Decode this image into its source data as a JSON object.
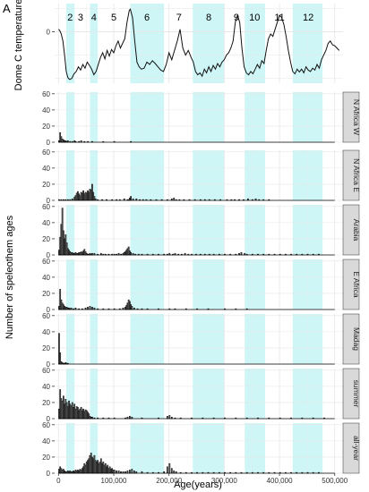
{
  "figure": {
    "panel_letter": "A",
    "xlabel": "Age(years)",
    "ylabel_bottom": "Number of speleothem ages",
    "ylabel_top": "Dome C temperature",
    "x_ticks": [
      "0",
      "100,000",
      "200,000",
      "300,000",
      "400,000",
      "500,000"
    ]
  },
  "colors": {
    "shade": "#cff6f7",
    "grid": "#e6e6e6",
    "strip": "#d9d9d9",
    "line": "#111111",
    "bar_fill": "#666666"
  },
  "chart_data": [
    {
      "type": "line",
      "title": "",
      "ylabel": "Dome C temperature",
      "xlim": [
        -7000,
        515000
      ],
      "ylim": [
        -11,
        6
      ],
      "y_ticks": [
        0
      ],
      "shaded_intervals": [
        [
          14000,
          29000
        ],
        [
          57000,
          71000
        ],
        [
          130000,
          191000
        ],
        [
          243000,
          300000
        ],
        [
          337000,
          374000
        ],
        [
          424000,
          478000
        ]
      ],
      "stage_labels": [
        {
          "label": "2",
          "x": 21000
        },
        {
          "label": "3",
          "x": 40000
        },
        {
          "label": "4",
          "x": 64000
        },
        {
          "label": "5",
          "x": 100000
        },
        {
          "label": "6",
          "x": 160000
        },
        {
          "label": "7",
          "x": 218000
        },
        {
          "label": "8",
          "x": 272000
        },
        {
          "label": "9",
          "x": 322000
        },
        {
          "label": "10",
          "x": 355000
        },
        {
          "label": "11",
          "x": 400000
        },
        {
          "label": "12",
          "x": 452000
        }
      ],
      "x": [
        0,
        2000,
        5000,
        8000,
        11000,
        14000,
        17000,
        20000,
        24000,
        28000,
        32000,
        36000,
        40000,
        44000,
        48000,
        52000,
        56000,
        60000,
        64000,
        68000,
        72000,
        76000,
        80000,
        84000,
        88000,
        92000,
        96000,
        100000,
        104000,
        108000,
        112000,
        116000,
        120000,
        124000,
        128000,
        130000,
        134000,
        138000,
        142000,
        146000,
        150000,
        155000,
        160000,
        165000,
        170000,
        175000,
        180000,
        185000,
        190000,
        195000,
        200000,
        205000,
        210000,
        215000,
        220000,
        225000,
        230000,
        235000,
        240000,
        244000,
        248000,
        252000,
        256000,
        260000,
        264000,
        268000,
        272000,
        276000,
        280000,
        284000,
        288000,
        292000,
        296000,
        300000,
        304000,
        308000,
        312000,
        316000,
        320000,
        324000,
        328000,
        332000,
        336000,
        340000,
        344000,
        348000,
        352000,
        356000,
        360000,
        364000,
        368000,
        372000,
        376000,
        380000,
        384000,
        388000,
        392000,
        396000,
        400000,
        404000,
        408000,
        412000,
        416000,
        420000,
        424000,
        428000,
        432000,
        436000,
        440000,
        444000,
        448000,
        452000,
        456000,
        460000,
        464000,
        468000,
        472000,
        476000,
        480000,
        484000,
        488000,
        492000,
        496000,
        500000,
        504000,
        508000
      ],
      "values": [
        0.5,
        0.3,
        -0.5,
        -2.0,
        -5.0,
        -8.5,
        -9.8,
        -10.2,
        -10.0,
        -9.0,
        -8.5,
        -7.5,
        -8.2,
        -7.0,
        -7.8,
        -6.5,
        -7.2,
        -8.0,
        -9.2,
        -8.5,
        -7.0,
        -5.5,
        -4.5,
        -5.8,
        -4.0,
        -5.2,
        -3.8,
        -4.5,
        -3.0,
        -2.0,
        -3.5,
        -2.5,
        -1.5,
        2.0,
        4.5,
        4.8,
        3.0,
        -2.0,
        -6.5,
        -7.5,
        -8.0,
        -7.8,
        -6.5,
        -7.0,
        -6.2,
        -6.8,
        -7.5,
        -8.2,
        -8.5,
        -7.0,
        -4.5,
        -6.0,
        -4.0,
        -2.0,
        0.5,
        -3.5,
        -5.0,
        -4.0,
        -5.5,
        -6.5,
        -8.5,
        -9.2,
        -8.8,
        -9.5,
        -8.0,
        -8.8,
        -7.5,
        -8.5,
        -7.2,
        -8.0,
        -6.8,
        -7.5,
        -6.5,
        -6.0,
        -5.0,
        -4.5,
        -3.5,
        -2.0,
        2.0,
        3.5,
        2.0,
        -3.5,
        -7.5,
        -8.8,
        -9.2,
        -8.5,
        -9.0,
        -8.0,
        -7.0,
        -7.8,
        -6.2,
        -6.8,
        -4.0,
        -1.5,
        -0.5,
        -1.0,
        0.5,
        2.0,
        3.5,
        3.0,
        1.5,
        -1.0,
        -4.0,
        -6.5,
        -8.5,
        -9.0,
        -8.0,
        -8.6,
        -8.0,
        -8.8,
        -7.5,
        -8.2,
        -8.5,
        -7.8,
        -8.2,
        -7.0,
        -7.8,
        -6.0,
        -5.0,
        -4.0,
        -2.5,
        -2.0,
        -2.8,
        -3.0,
        -3.5,
        -4.0
      ]
    },
    {
      "type": "bar",
      "name": "N Africa W",
      "xlim": [
        -7000,
        515000
      ],
      "ylim": [
        0,
        62
      ],
      "y_ticks": [
        0,
        20,
        40,
        60
      ],
      "bin_width": 2000,
      "x": [
        0,
        2000,
        4000,
        6000,
        8000,
        10000,
        12000,
        14000,
        16000,
        20000,
        24000,
        28000,
        30000,
        36000,
        40000,
        46000,
        52000,
        60000,
        80000,
        100000,
        130000
      ],
      "values": [
        2,
        12,
        7,
        4,
        3,
        2,
        2,
        1,
        2,
        1,
        1,
        2,
        1,
        1,
        2,
        1,
        1,
        1,
        1,
        1,
        1
      ]
    },
    {
      "type": "bar",
      "name": "N Africa E",
      "xlim": [
        -7000,
        515000
      ],
      "ylim": [
        0,
        62
      ],
      "y_ticks": [
        0,
        20,
        40,
        60
      ],
      "bin_width": 2000,
      "x": [
        0,
        4000,
        8000,
        12000,
        16000,
        20000,
        24000,
        28000,
        30000,
        32000,
        34000,
        36000,
        38000,
        40000,
        42000,
        44000,
        46000,
        48000,
        50000,
        52000,
        54000,
        56000,
        58000,
        60000,
        62000,
        64000,
        66000,
        70000,
        78000,
        86000,
        96000,
        104000,
        110000,
        118000,
        124000,
        126000,
        128000,
        130000,
        134000,
        140000,
        146000,
        152000,
        158000,
        166000,
        176000,
        186000,
        196000,
        204000,
        208000,
        212000,
        218000,
        226000,
        236000,
        246000,
        256000,
        264000,
        272000,
        282000,
        292000,
        304000,
        312000,
        318000,
        326000,
        334000,
        342000,
        350000,
        356000,
        362000,
        370000,
        380000
      ],
      "values": [
        1,
        1,
        1,
        1,
        1,
        1,
        2,
        4,
        6,
        9,
        11,
        8,
        6,
        10,
        9,
        12,
        8,
        10,
        9,
        12,
        10,
        14,
        13,
        20,
        10,
        5,
        2,
        1,
        1,
        1,
        1,
        1,
        1,
        2,
        1,
        1,
        3,
        5,
        2,
        2,
        1,
        1,
        1,
        1,
        1,
        1,
        1,
        2,
        3,
        1,
        1,
        1,
        1,
        1,
        1,
        1,
        1,
        1,
        1,
        1,
        1,
        1,
        1,
        1,
        2,
        1,
        2,
        1,
        1,
        1
      ]
    },
    {
      "type": "bar",
      "name": "Arabia",
      "xlim": [
        -7000,
        515000
      ],
      "ylim": [
        0,
        62
      ],
      "y_ticks": [
        0,
        20,
        40,
        60
      ],
      "bin_width": 2000,
      "x": [
        0,
        2000,
        4000,
        6000,
        8000,
        10000,
        12000,
        14000,
        16000,
        18000,
        20000,
        22000,
        24000,
        26000,
        28000,
        30000,
        32000,
        34000,
        36000,
        38000,
        40000,
        42000,
        44000,
        46000,
        48000,
        50000,
        52000,
        54000,
        56000,
        58000,
        60000,
        64000,
        70000,
        76000,
        80000,
        84000,
        90000,
        96000,
        100000,
        104000,
        108000,
        112000,
        116000,
        118000,
        120000,
        122000,
        124000,
        126000,
        128000,
        130000,
        134000,
        138000,
        144000,
        150000,
        160000,
        170000,
        180000,
        190000,
        196000,
        200000,
        206000,
        210000,
        216000,
        222000,
        228000,
        234000,
        240000,
        248000,
        256000,
        264000,
        272000,
        280000,
        290000,
        300000,
        310000,
        320000,
        326000,
        330000,
        336000,
        340000,
        350000,
        360000,
        370000,
        380000,
        390000,
        400000,
        410000,
        420000,
        430000,
        440000,
        450000,
        460000,
        470000
      ],
      "values": [
        6,
        22,
        38,
        58,
        30,
        20,
        25,
        15,
        8,
        6,
        4,
        3,
        3,
        2,
        2,
        3,
        2,
        2,
        3,
        3,
        4,
        3,
        5,
        7,
        4,
        2,
        1,
        1,
        2,
        1,
        2,
        2,
        1,
        2,
        1,
        1,
        1,
        1,
        1,
        1,
        2,
        1,
        2,
        3,
        4,
        6,
        8,
        10,
        5,
        3,
        2,
        1,
        1,
        1,
        1,
        1,
        1,
        1,
        1,
        2,
        1,
        2,
        1,
        1,
        2,
        1,
        1,
        1,
        1,
        1,
        1,
        1,
        1,
        1,
        1,
        1,
        2,
        3,
        2,
        1,
        1,
        1,
        1,
        1,
        1,
        1,
        1,
        1,
        1,
        1,
        1,
        1,
        1
      ]
    },
    {
      "type": "bar",
      "name": "E Africa",
      "xlim": [
        -7000,
        515000
      ],
      "ylim": [
        0,
        62
      ],
      "y_ticks": [
        0,
        20,
        40,
        60
      ],
      "bin_width": 2000,
      "x": [
        0,
        2000,
        4000,
        6000,
        8000,
        10000,
        12000,
        14000,
        16000,
        18000,
        20000,
        22000,
        26000,
        30000,
        36000,
        42000,
        48000,
        52000,
        56000,
        60000,
        64000,
        70000,
        80000,
        90000,
        100000,
        110000,
        116000,
        120000,
        122000,
        124000,
        126000,
        128000,
        130000,
        132000,
        136000,
        142000,
        150000,
        160000,
        180000,
        200000,
        210000,
        230000,
        250000,
        270000,
        300000,
        320000,
        340000
      ],
      "values": [
        4,
        25,
        12,
        8,
        6,
        4,
        3,
        3,
        2,
        2,
        1,
        2,
        1,
        2,
        1,
        1,
        2,
        3,
        4,
        3,
        2,
        1,
        1,
        1,
        1,
        1,
        2,
        3,
        5,
        8,
        12,
        10,
        6,
        4,
        2,
        1,
        1,
        1,
        1,
        1,
        1,
        1,
        1,
        1,
        1,
        1,
        1
      ]
    },
    {
      "type": "bar",
      "name": "Madag",
      "xlim": [
        -7000,
        515000
      ],
      "ylim": [
        0,
        62
      ],
      "y_ticks": [
        0,
        20,
        40,
        60
      ],
      "bin_width": 2000,
      "x": [
        0,
        2000,
        4000,
        6000,
        8000,
        10000,
        12000,
        14000,
        16000
      ],
      "values": [
        38,
        14,
        3,
        2,
        1,
        1,
        2,
        1,
        1
      ]
    },
    {
      "type": "bar",
      "name": "summer",
      "xlim": [
        -7000,
        515000
      ],
      "ylim": [
        0,
        62
      ],
      "y_ticks": [
        0,
        20,
        40,
        60
      ],
      "bin_width": 2000,
      "x": [
        0,
        2000,
        4000,
        6000,
        8000,
        10000,
        12000,
        14000,
        16000,
        18000,
        20000,
        22000,
        24000,
        26000,
        28000,
        30000,
        32000,
        34000,
        36000,
        38000,
        40000,
        42000,
        44000,
        46000,
        48000,
        50000,
        52000,
        54000,
        56000,
        58000,
        60000,
        64000,
        70000,
        80000,
        90000,
        100000,
        120000,
        124000,
        128000,
        132000,
        150000,
        180000,
        196000,
        200000,
        204000,
        210000,
        220000,
        240000,
        260000,
        280000,
        300000,
        320000,
        340000,
        360000,
        380000,
        400000,
        420000,
        440000,
        460000,
        480000
      ],
      "values": [
        12,
        36,
        25,
        22,
        28,
        18,
        24,
        20,
        15,
        22,
        18,
        16,
        20,
        14,
        18,
        12,
        15,
        14,
        10,
        12,
        14,
        10,
        12,
        9,
        11,
        10,
        8,
        6,
        3,
        2,
        2,
        1,
        1,
        1,
        1,
        1,
        1,
        2,
        3,
        2,
        1,
        1,
        3,
        4,
        2,
        1,
        1,
        1,
        1,
        1,
        1,
        1,
        1,
        1,
        1,
        1,
        1,
        1,
        1,
        1
      ]
    },
    {
      "type": "bar",
      "name": "all-year",
      "xlim": [
        -7000,
        515000
      ],
      "ylim": [
        0,
        62
      ],
      "y_ticks": [
        0,
        20,
        40,
        60
      ],
      "bin_width": 2000,
      "x": [
        0,
        2000,
        4000,
        6000,
        8000,
        10000,
        12000,
        14000,
        16000,
        18000,
        20000,
        22000,
        24000,
        26000,
        28000,
        30000,
        32000,
        34000,
        36000,
        38000,
        40000,
        42000,
        44000,
        46000,
        48000,
        50000,
        52000,
        54000,
        56000,
        58000,
        60000,
        62000,
        64000,
        66000,
        68000,
        70000,
        72000,
        74000,
        76000,
        78000,
        80000,
        82000,
        84000,
        86000,
        88000,
        90000,
        92000,
        94000,
        96000,
        98000,
        100000,
        104000,
        108000,
        112000,
        116000,
        120000,
        124000,
        128000,
        132000,
        136000,
        140000,
        150000,
        160000,
        170000,
        180000,
        190000,
        196000,
        200000,
        204000,
        208000,
        212000,
        220000,
        230000,
        240000,
        250000,
        260000,
        270000,
        280000,
        290000,
        300000,
        310000,
        320000,
        330000,
        340000,
        350000,
        360000,
        370000,
        380000,
        390000,
        400000,
        410000,
        420000,
        430000,
        440000,
        450000,
        460000,
        470000
      ],
      "values": [
        5,
        8,
        6,
        4,
        5,
        3,
        2,
        2,
        3,
        2,
        3,
        2,
        2,
        3,
        2,
        4,
        3,
        4,
        3,
        5,
        4,
        6,
        8,
        12,
        10,
        14,
        16,
        18,
        22,
        25,
        20,
        18,
        22,
        16,
        14,
        16,
        12,
        14,
        18,
        12,
        14,
        10,
        12,
        8,
        10,
        6,
        8,
        5,
        6,
        4,
        4,
        3,
        3,
        2,
        2,
        2,
        3,
        4,
        5,
        3,
        2,
        2,
        1,
        1,
        1,
        2,
        8,
        12,
        6,
        3,
        2,
        1,
        1,
        1,
        1,
        1,
        1,
        1,
        1,
        1,
        1,
        1,
        1,
        1,
        1,
        1,
        1,
        1,
        1,
        1,
        1,
        1,
        1,
        1,
        1,
        1,
        1
      ]
    }
  ]
}
